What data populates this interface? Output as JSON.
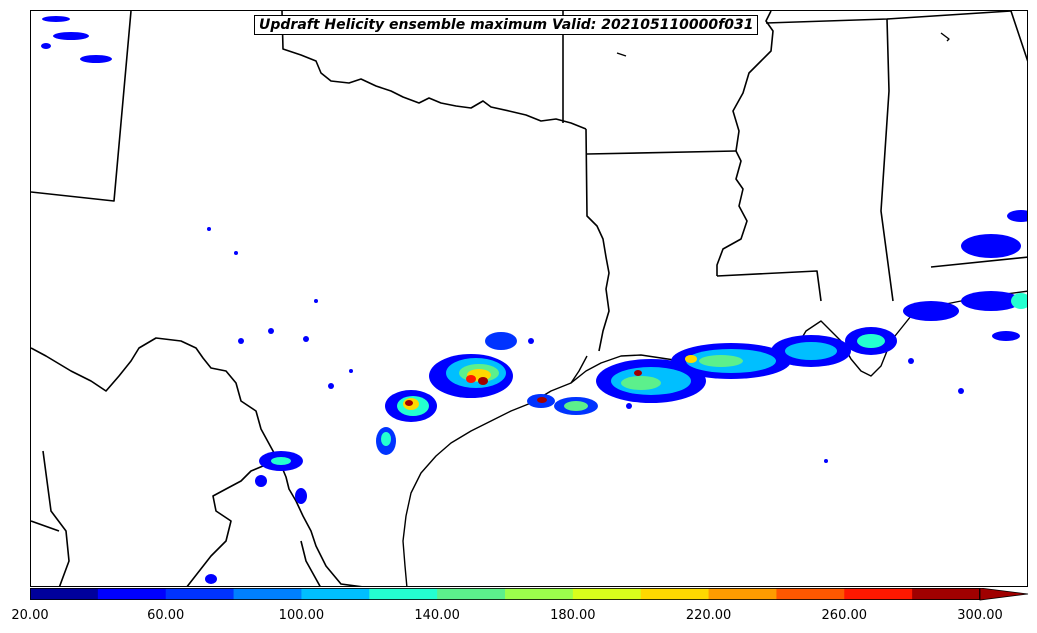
{
  "title": "Updraft Helicity ensemble maximum Valid: 202105110000f031",
  "colorbar": {
    "tick_labels": [
      "20.00",
      "60.00",
      "100.00",
      "140.00",
      "180.00",
      "220.00",
      "260.00",
      "300.00"
    ],
    "colors": [
      "#00009c",
      "#0000ff",
      "#0033ff",
      "#0080ff",
      "#00bfff",
      "#24ffd0",
      "#5cf08c",
      "#9cff4c",
      "#d8ff1c",
      "#ffd800",
      "#ff9c00",
      "#ff5800",
      "#ff1800",
      "#a00000"
    ],
    "extend": "max"
  }
}
